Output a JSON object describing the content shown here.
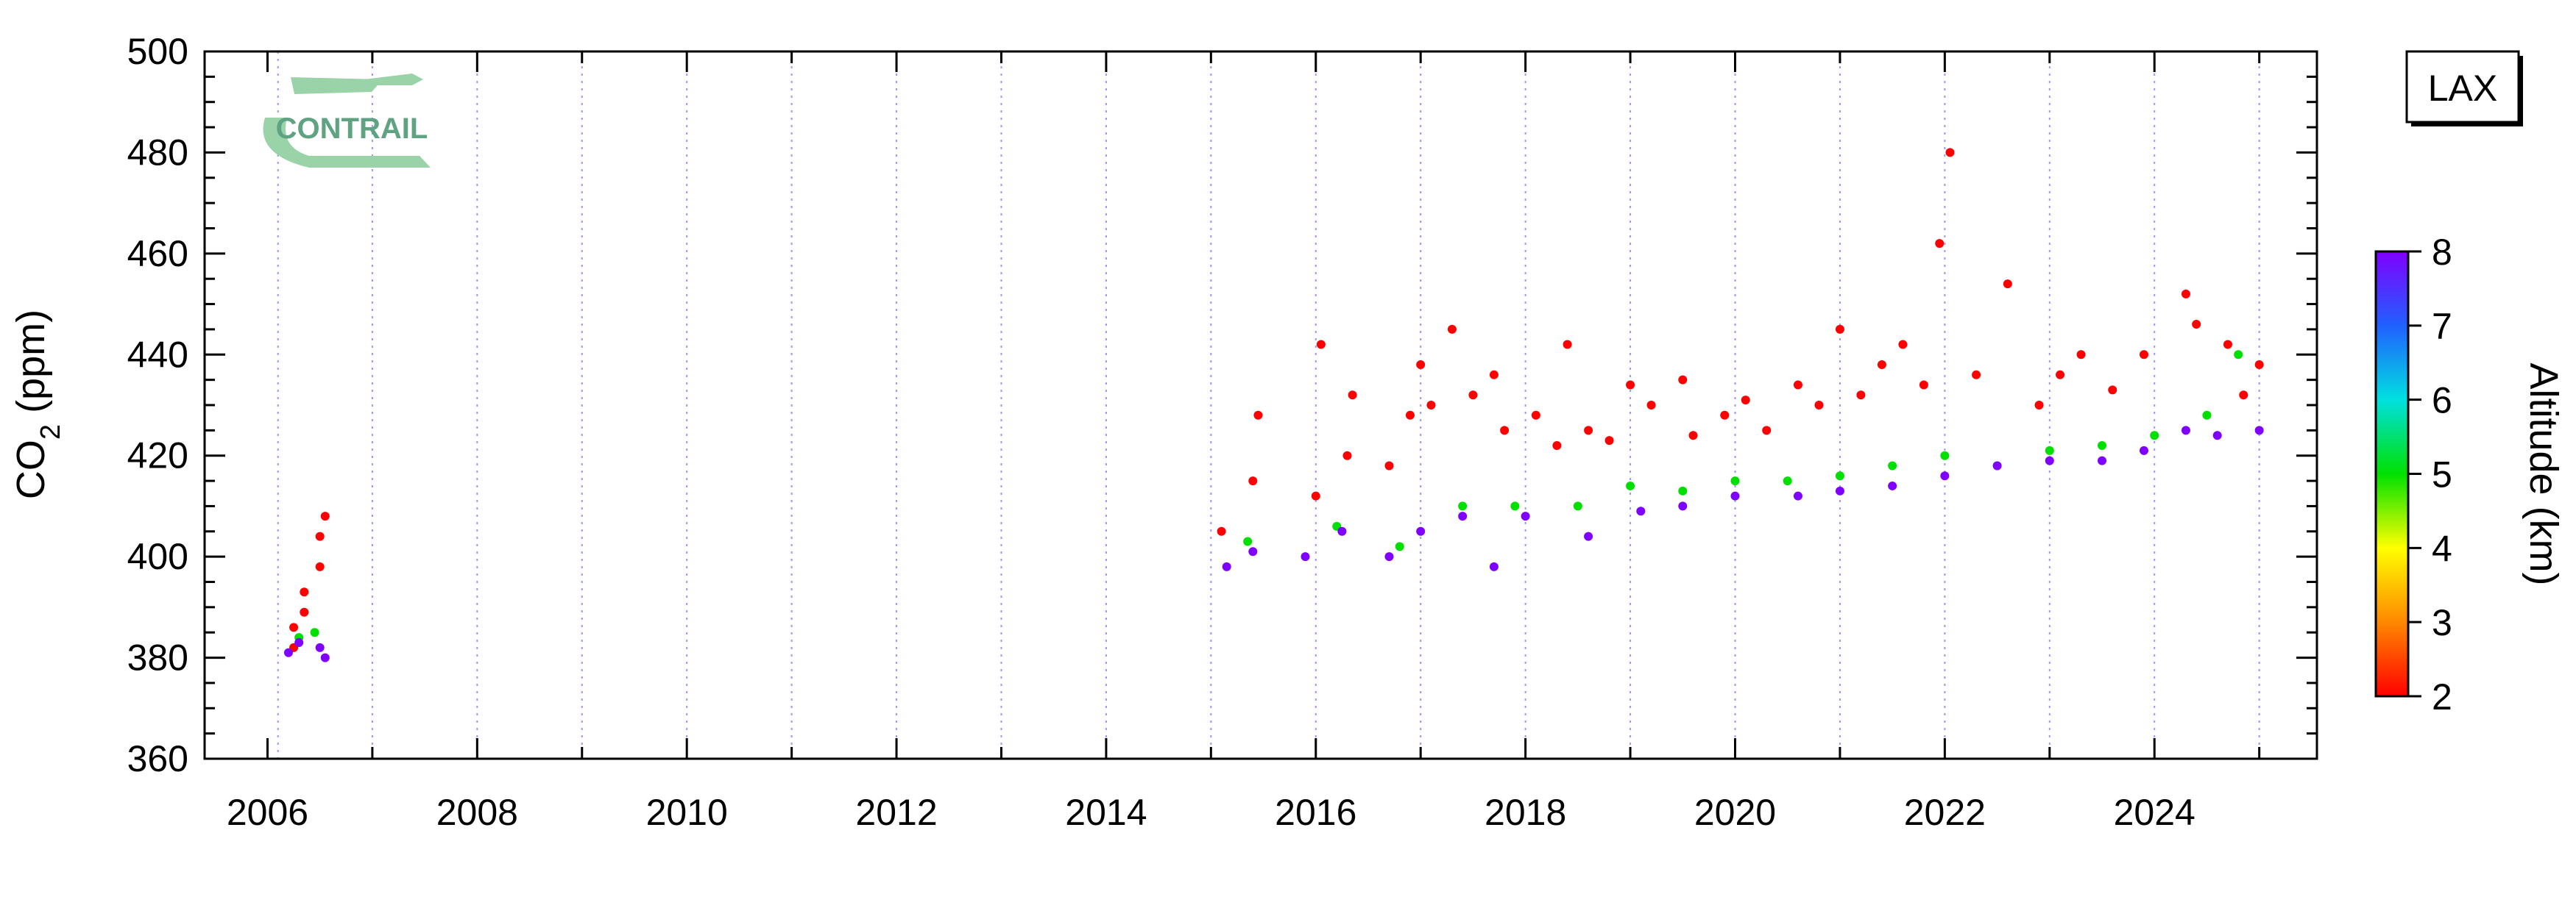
{
  "chart_data": {
    "type": "scatter",
    "station": "LAX",
    "logo_text": "CONTRAIL",
    "ylabel_main": "CO",
    "ylabel_sub": "2",
    "ylabel_unit": " (ppm)",
    "ylim": [
      360,
      500
    ],
    "yticks": [
      360,
      380,
      400,
      420,
      440,
      460,
      480,
      500
    ],
    "ytick_labels": [
      "360",
      "380",
      "400",
      "420",
      "440",
      "460",
      "480",
      "500"
    ],
    "xlim": [
      2005.4,
      2025.55
    ],
    "xticks": [
      2006,
      2008,
      2010,
      2012,
      2014,
      2016,
      2018,
      2020,
      2022,
      2024
    ],
    "xtick_labels": [
      "2006",
      "2008",
      "2010",
      "2012",
      "2014",
      "2016",
      "2018",
      "2020",
      "2022",
      "2024"
    ],
    "vertical_grid_years": [
      2006.1,
      2007,
      2008,
      2009,
      2010,
      2011,
      2012,
      2013,
      2014,
      2015,
      2016,
      2017,
      2018,
      2019,
      2020,
      2021,
      2022,
      2023,
      2024,
      2025
    ],
    "colorbar": {
      "label": "Altitude (km)",
      "min": 2,
      "max": 8,
      "ticks": [
        2,
        3,
        4,
        5,
        6,
        7,
        8
      ],
      "tick_labels": [
        "2",
        "3",
        "4",
        "5",
        "6",
        "7",
        "8"
      ],
      "colors": [
        "#ff0000",
        "#ff8800",
        "#ffff00",
        "#00e000",
        "#00e0e0",
        "#2060ff",
        "#8000ff"
      ]
    },
    "series": [
      {
        "altitude_km": 2,
        "x": [
          2006.25,
          2006.25,
          2006.35,
          2006.35,
          2006.5,
          2006.5,
          2006.55,
          2015.1,
          2015.4,
          2015.45,
          2016.0,
          2016.05,
          2016.3,
          2016.35,
          2016.7,
          2016.9,
          2017.0,
          2017.1,
          2017.3,
          2017.5,
          2017.7,
          2017.8,
          2018.1,
          2018.3,
          2018.4,
          2018.6,
          2018.8,
          2019.0,
          2019.2,
          2019.5,
          2019.6,
          2019.9,
          2020.1,
          2020.3,
          2020.6,
          2020.8,
          2021.0,
          2021.2,
          2021.4,
          2021.6,
          2021.8,
          2021.95,
          2022.05,
          2022.3,
          2022.6,
          2022.9,
          2023.1,
          2023.3,
          2023.6,
          2023.9,
          2024.3,
          2024.4,
          2024.7,
          2024.85,
          2025.0
        ],
        "y": [
          382,
          386,
          389,
          393,
          398,
          404,
          408,
          405,
          415,
          428,
          412,
          442,
          420,
          432,
          418,
          428,
          438,
          430,
          445,
          432,
          436,
          425,
          428,
          422,
          442,
          425,
          423,
          434,
          430,
          435,
          424,
          428,
          431,
          425,
          434,
          430,
          445,
          432,
          438,
          442,
          434,
          462,
          480,
          436,
          454,
          430,
          436,
          440,
          433,
          440,
          452,
          446,
          442,
          432,
          438
        ]
      },
      {
        "altitude_km": 5,
        "x": [
          2006.3,
          2006.45,
          2015.35,
          2016.2,
          2016.8,
          2017.4,
          2017.9,
          2018.5,
          2019.0,
          2019.5,
          2020.0,
          2020.5,
          2021.0,
          2021.5,
          2022.0,
          2022.5,
          2023.0,
          2023.5,
          2024.0,
          2024.5,
          2024.8
        ],
        "y": [
          384,
          385,
          403,
          406,
          402,
          410,
          410,
          410,
          414,
          413,
          415,
          415,
          416,
          418,
          420,
          418,
          421,
          422,
          424,
          428,
          440
        ]
      },
      {
        "altitude_km": 8,
        "x": [
          2006.2,
          2006.3,
          2006.5,
          2006.55,
          2015.15,
          2015.4,
          2015.9,
          2016.25,
          2016.7,
          2017.0,
          2017.4,
          2017.7,
          2018.0,
          2018.6,
          2019.1,
          2019.5,
          2020.0,
          2020.6,
          2021.0,
          2021.5,
          2022.0,
          2022.5,
          2023.0,
          2023.5,
          2023.9,
          2024.3,
          2024.6,
          2025.0
        ],
        "y": [
          381,
          383,
          382,
          380,
          398,
          401,
          400,
          405,
          400,
          405,
          408,
          398,
          408,
          404,
          409,
          410,
          412,
          412,
          413,
          414,
          416,
          418,
          419,
          419,
          421,
          425,
          424,
          425
        ]
      }
    ]
  }
}
